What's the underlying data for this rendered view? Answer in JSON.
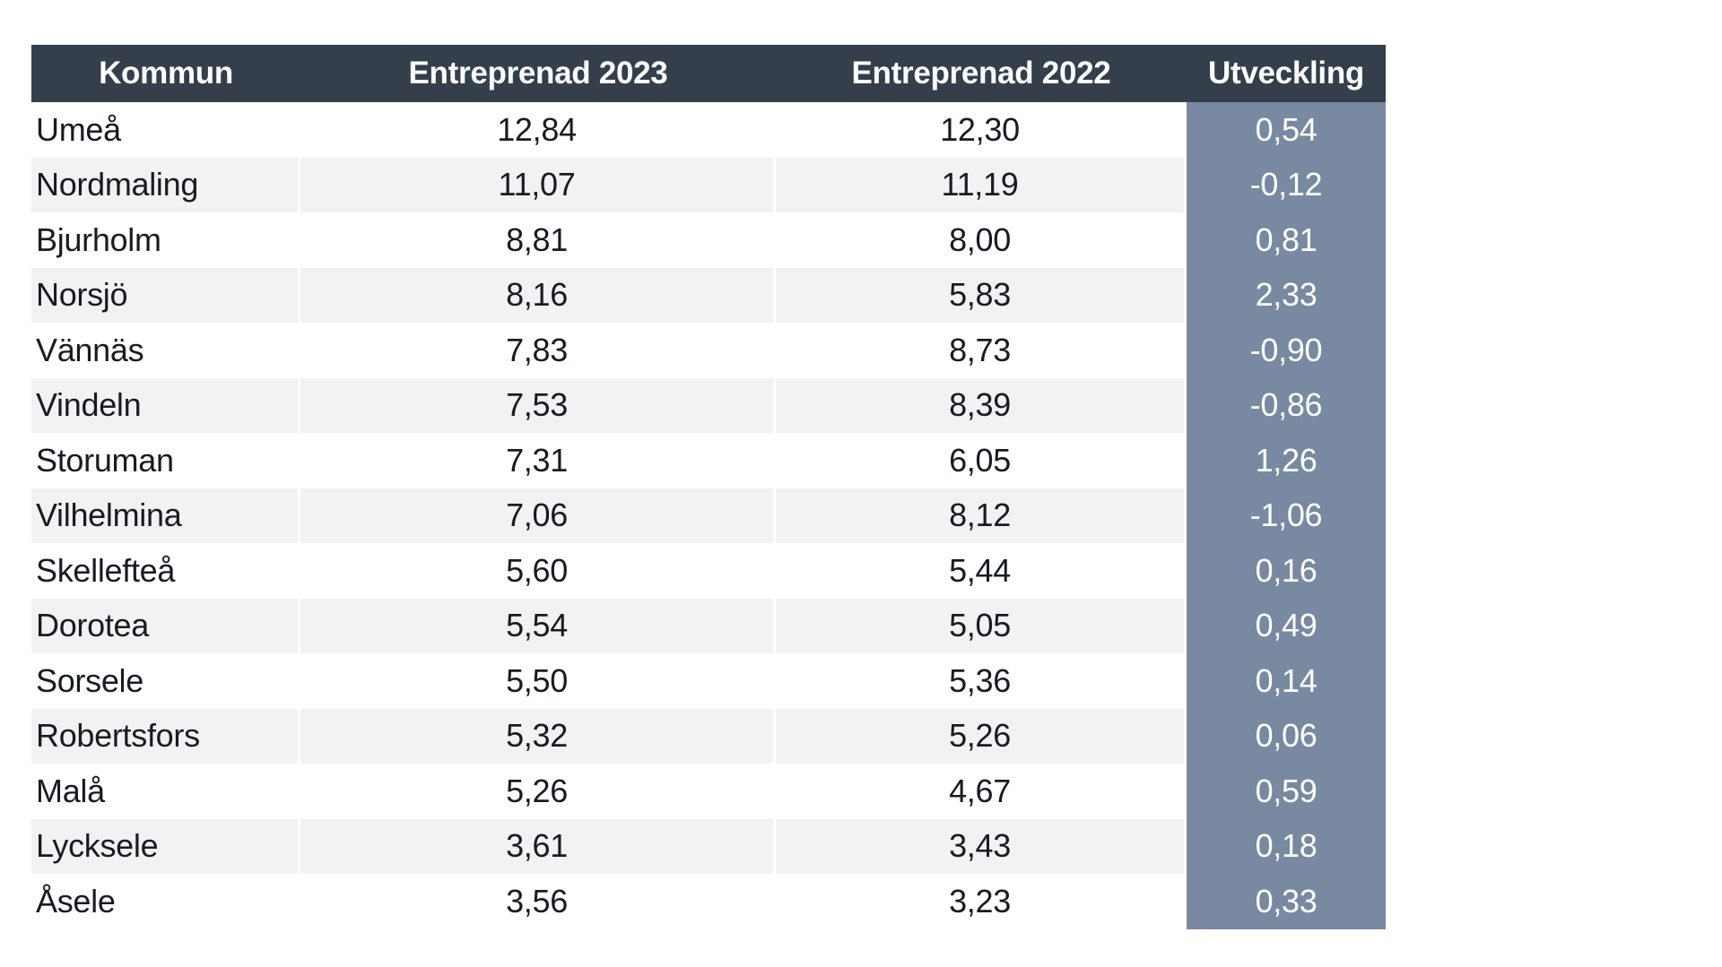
{
  "colors": {
    "header_bg": "#343F4B",
    "header_text": "#FFFFFF",
    "accent_bg": "#7889A1",
    "accent_text": "#FFFFFF",
    "alt_row_bg": "#F2F2F2",
    "body_text": "#171B23",
    "page_bg": "#FFFFFF"
  },
  "table": {
    "columns": [
      {
        "key": "kommun",
        "label": "Kommun"
      },
      {
        "key": "entreprenad_2023",
        "label": "Entreprenad 2023"
      },
      {
        "key": "entreprenad_2022",
        "label": "Entreprenad 2022"
      },
      {
        "key": "utveckling",
        "label": "Utveckling"
      }
    ],
    "rows": [
      {
        "kommun": "Umeå",
        "entreprenad_2023": "12,84",
        "entreprenad_2022": "12,30",
        "utveckling": "0,54"
      },
      {
        "kommun": "Nordmaling",
        "entreprenad_2023": "11,07",
        "entreprenad_2022": "11,19",
        "utveckling": "-0,12"
      },
      {
        "kommun": "Bjurholm",
        "entreprenad_2023": "8,81",
        "entreprenad_2022": "8,00",
        "utveckling": "0,81"
      },
      {
        "kommun": "Norsjö",
        "entreprenad_2023": "8,16",
        "entreprenad_2022": "5,83",
        "utveckling": "2,33"
      },
      {
        "kommun": "Vännäs",
        "entreprenad_2023": "7,83",
        "entreprenad_2022": "8,73",
        "utveckling": "-0,90"
      },
      {
        "kommun": "Vindeln",
        "entreprenad_2023": "7,53",
        "entreprenad_2022": "8,39",
        "utveckling": "-0,86"
      },
      {
        "kommun": "Storuman",
        "entreprenad_2023": "7,31",
        "entreprenad_2022": "6,05",
        "utveckling": "1,26"
      },
      {
        "kommun": "Vilhelmina",
        "entreprenad_2023": "7,06",
        "entreprenad_2022": "8,12",
        "utveckling": "-1,06"
      },
      {
        "kommun": "Skellefteå",
        "entreprenad_2023": "5,60",
        "entreprenad_2022": "5,44",
        "utveckling": "0,16"
      },
      {
        "kommun": "Dorotea",
        "entreprenad_2023": "5,54",
        "entreprenad_2022": "5,05",
        "utveckling": "0,49"
      },
      {
        "kommun": "Sorsele",
        "entreprenad_2023": "5,50",
        "entreprenad_2022": "5,36",
        "utveckling": "0,14"
      },
      {
        "kommun": "Robertsfors",
        "entreprenad_2023": "5,32",
        "entreprenad_2022": "5,26",
        "utveckling": "0,06"
      },
      {
        "kommun": "Malå",
        "entreprenad_2023": "5,26",
        "entreprenad_2022": "4,67",
        "utveckling": "0,59"
      },
      {
        "kommun": "Lycksele",
        "entreprenad_2023": "3,61",
        "entreprenad_2022": "3,43",
        "utveckling": "0,18"
      },
      {
        "kommun": "Åsele",
        "entreprenad_2023": "3,56",
        "entreprenad_2022": "3,23",
        "utveckling": "0,33"
      }
    ]
  }
}
